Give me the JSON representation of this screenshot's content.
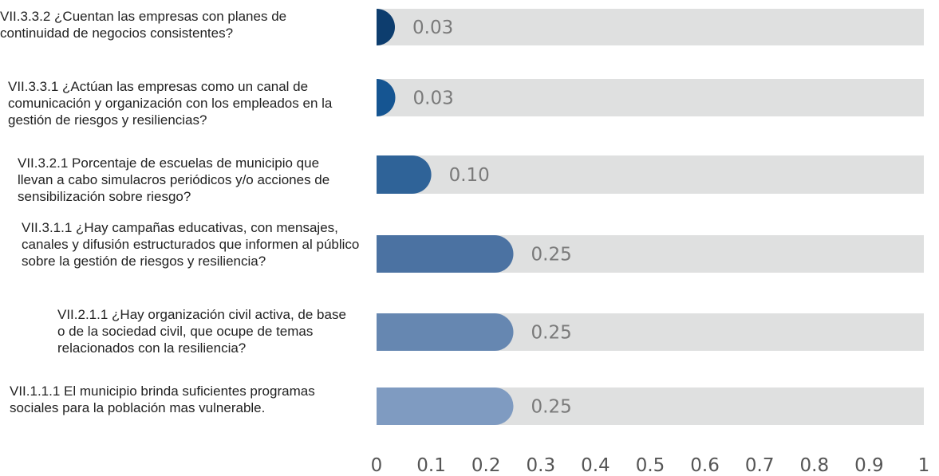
{
  "chart_data": {
    "type": "bar",
    "orientation": "horizontal",
    "title": "",
    "xlabel": "",
    "ylabel": "",
    "xlim": [
      0,
      1
    ],
    "x_ticks": [
      "0",
      "0.1",
      "0.2",
      "0.3",
      "0.4",
      "0.5",
      "0.6",
      "0.7",
      "0.8",
      "0.9",
      "1"
    ],
    "grid": false,
    "legend": "none",
    "track_color": "#dfe0e0",
    "value_label_color": "#7a7a7a",
    "tick_label_color": "#555555",
    "categories": [
      "VII.3.3.2 ¿Cuentan las empresas con planes de continuidad de negocios consistentes?",
      "VII.3.3.1 ¿Actúan las empresas como un canal de comunicación y organización con los empleados en la gestión de riesgos y resiliencias?",
      "VII.3.2.1 Porcentaje de escuelas de municipio que llevan a cabo simulacros periódicos y/o acciones de sensibilización sobre riesgo?",
      "VII.3.1.1 ¿Hay campañas educativas, con mensajes, canales y difusión estructurados que informen al público sobre la gestión de riesgos y resiliencia?",
      "VII.2.1.1 ¿Hay organización civil activa, de base o de la sociedad civil, que ocupe de temas relacionados con la resiliencia?",
      "VII.1.1.1 El municipio brinda suficientes programas sociales para la población mas vulnerable."
    ],
    "values": [
      0.03,
      0.03,
      0.1,
      0.25,
      0.25,
      0.25
    ],
    "value_labels": [
      "0.03",
      "0.03",
      "0.10",
      "0.25",
      "0.25",
      "0.25"
    ],
    "bar_colors": [
      "#0d3d6e",
      "#155592",
      "#2f6398",
      "#4b72a2",
      "#6687b1",
      "#7f9bc1"
    ]
  }
}
